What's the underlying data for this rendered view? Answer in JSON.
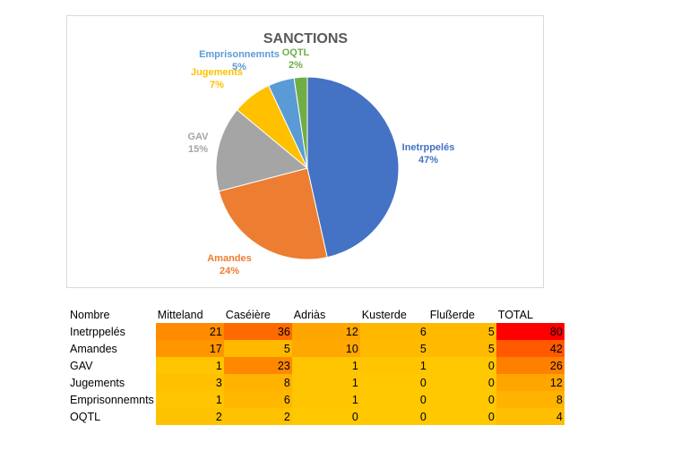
{
  "chart_data": {
    "type": "pie",
    "title": "SANCTIONS",
    "slices": [
      {
        "name": "Inetrppelés",
        "value": 80,
        "pct_label": "47%",
        "color": "#4472c4"
      },
      {
        "name": "Amandes",
        "value": 42,
        "pct_label": "24%",
        "color": "#ed7d31"
      },
      {
        "name": "GAV",
        "value": 26,
        "pct_label": "15%",
        "color": "#a5a5a5"
      },
      {
        "name": "Jugements",
        "value": 12,
        "pct_label": "7%",
        "color": "#ffc000"
      },
      {
        "name": "Emprisonnemnts",
        "value": 8,
        "pct_label": "5%",
        "color": "#5b9bd5"
      },
      {
        "name": "OQTL",
        "value": 4,
        "pct_label": "2%",
        "color": "#70ad47"
      }
    ]
  },
  "table": {
    "headers": [
      "Nombre",
      "Mitteland",
      "Caséière",
      "Adriàs",
      "Kusterde",
      "Flußerde",
      "TOTAL"
    ],
    "rows": [
      {
        "label": "Inetrppelés",
        "values": [
          21,
          36,
          12,
          6,
          5,
          80
        ],
        "colors": [
          "#ff8c00",
          "#ff6a00",
          "#ffa500",
          "#ffb700",
          "#ffba00",
          "#ff0000"
        ]
      },
      {
        "label": "Amandes",
        "values": [
          17,
          5,
          10,
          5,
          5,
          42
        ],
        "colors": [
          "#ff9600",
          "#ffba00",
          "#ffa800",
          "#ffba00",
          "#ffba00",
          "#ff5a00"
        ]
      },
      {
        "label": "GAV",
        "values": [
          1,
          23,
          1,
          1,
          0,
          26
        ],
        "colors": [
          "#ffc500",
          "#ff8800",
          "#ffc500",
          "#ffc500",
          "#ffc800",
          "#ff8000"
        ]
      },
      {
        "label": "Jugements",
        "values": [
          3,
          8,
          1,
          0,
          0,
          12
        ],
        "colors": [
          "#ffc000",
          "#ffb200",
          "#ffc500",
          "#ffc800",
          "#ffc800",
          "#ffa500"
        ]
      },
      {
        "label": "Emprisonnemnts",
        "values": [
          1,
          6,
          1,
          0,
          0,
          8
        ],
        "colors": [
          "#ffc500",
          "#ffb700",
          "#ffc500",
          "#ffc800",
          "#ffc800",
          "#ffb200"
        ]
      },
      {
        "label": "OQTL",
        "values": [
          2,
          2,
          0,
          0,
          0,
          4
        ],
        "colors": [
          "#ffc200",
          "#ffc200",
          "#ffc800",
          "#ffc800",
          "#ffc800",
          "#ffbe00"
        ]
      }
    ]
  }
}
